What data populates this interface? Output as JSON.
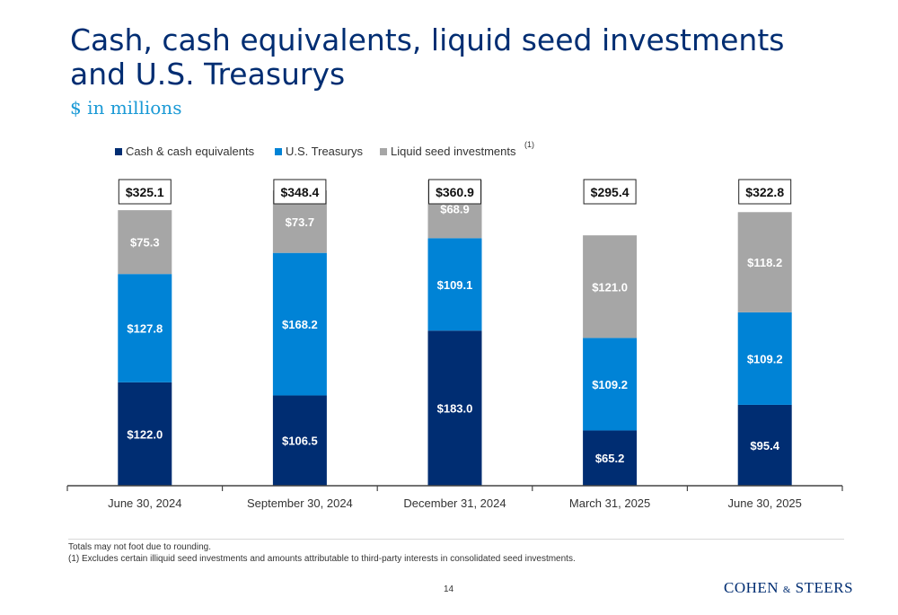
{
  "slide": {
    "title_line1": "Cash, cash equivalents, liquid seed investments",
    "title_line2": "and U.S. Treasurys",
    "subtitle": "$ in millions",
    "footnotes": [
      "Totals may not foot due to rounding.",
      "(1) Excludes certain illiquid seed investments and amounts attributable to third-party interests in consolidated seed investments."
    ],
    "page_number": "14",
    "logo": {
      "part1": "COHEN",
      "amp": "&",
      "part2": "STEERS"
    }
  },
  "chart_data": {
    "type": "bar",
    "stacked": true,
    "categories": [
      "June 30, 2024",
      "September 30, 2024",
      "December 31, 2024",
      "March 31, 2025",
      "June 30, 2025"
    ],
    "series": [
      {
        "name": "Cash & cash equivalents",
        "color": "#002d72",
        "values": [
          122.0,
          106.5,
          183.0,
          65.2,
          95.4
        ]
      },
      {
        "name": "U.S. Treasurys",
        "color": "#0083d6",
        "values": [
          127.8,
          168.2,
          109.1,
          109.2,
          109.2
        ]
      },
      {
        "name": "Liquid seed investments",
        "color": "#a6a6a6",
        "values": [
          75.3,
          73.7,
          68.9,
          121.0,
          118.2
        ]
      }
    ],
    "legend_footnote_marker": "(1)",
    "totals": [
      "$325.1",
      "$348.4",
      "$360.9",
      "$295.4",
      "$322.8"
    ],
    "segment_labels": [
      [
        "$122.0",
        "$106.5",
        "$183.0",
        "$65.2",
        "$95.4"
      ],
      [
        "$127.8",
        "$168.2",
        "$109.1",
        "$109.2",
        "$109.2"
      ],
      [
        "$75.3",
        "$73.7",
        "$68.9",
        "$121.0",
        "$118.2"
      ]
    ],
    "legend_position": "top",
    "grid": false
  }
}
